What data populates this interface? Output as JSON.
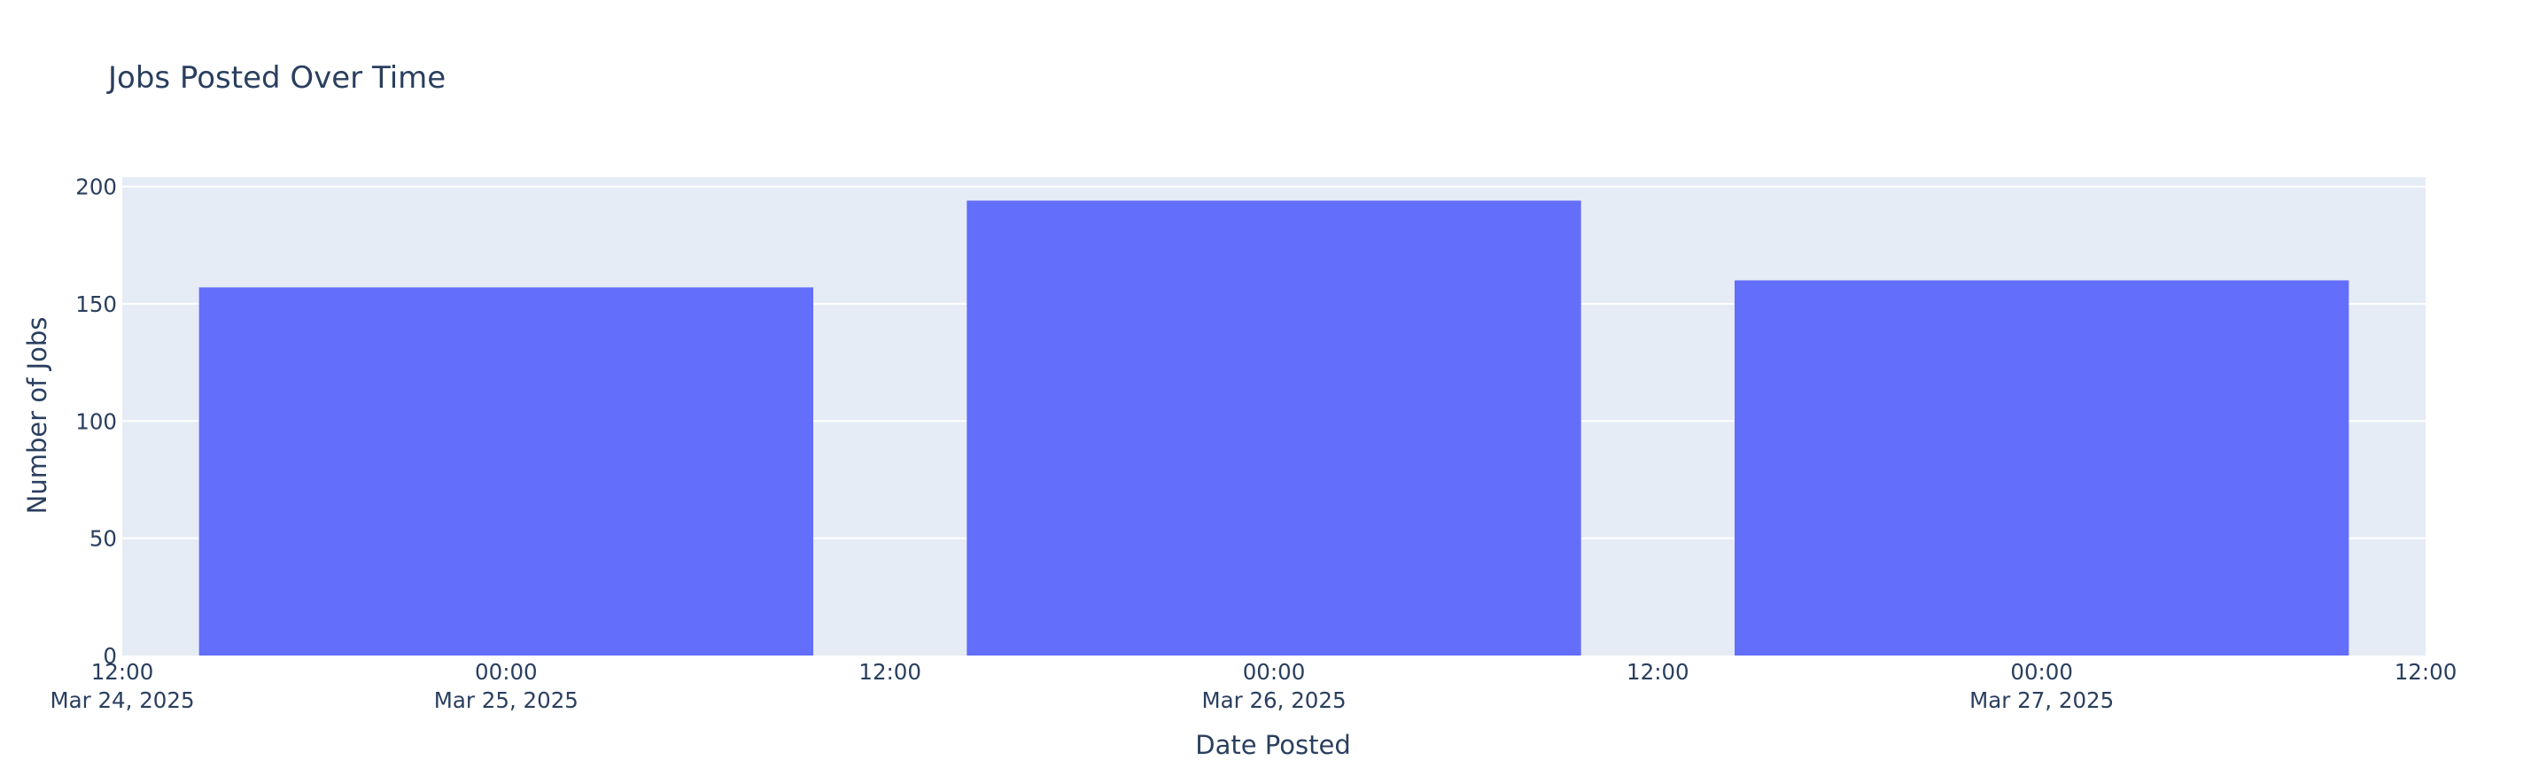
{
  "chart_data": {
    "type": "bar",
    "title": "Jobs Posted Over Time",
    "xlabel": "Date Posted",
    "ylabel": "Number of Jobs",
    "x": [
      "2025-03-25",
      "2025-03-26",
      "2025-03-27"
    ],
    "values": [
      157,
      194,
      160
    ],
    "xlim": [
      "2025-03-24 12:00",
      "2025-03-27 12:00"
    ],
    "ylim": [
      0,
      204
    ],
    "y_ticks": [
      0,
      50,
      100,
      150,
      200
    ],
    "x_ticks": [
      {
        "value": "2025-03-24 12:00",
        "line1": "12:00",
        "line2": "Mar 24, 2025"
      },
      {
        "value": "2025-03-25 00:00",
        "line1": "00:00",
        "line2": "Mar 25, 2025"
      },
      {
        "value": "2025-03-25 12:00",
        "line1": "12:00",
        "line2": ""
      },
      {
        "value": "2025-03-26 00:00",
        "line1": "00:00",
        "line2": "Mar 26, 2025"
      },
      {
        "value": "2025-03-26 12:00",
        "line1": "12:00",
        "line2": ""
      },
      {
        "value": "2025-03-27 00:00",
        "line1": "00:00",
        "line2": "Mar 27, 2025"
      },
      {
        "value": "2025-03-27 12:00",
        "line1": "12:00",
        "line2": ""
      }
    ],
    "grid": true,
    "colors": {
      "bar": "#636efa",
      "plot_background": "#e5ecf6",
      "grid": "#ffffff",
      "text": "#2a3f5f"
    }
  }
}
